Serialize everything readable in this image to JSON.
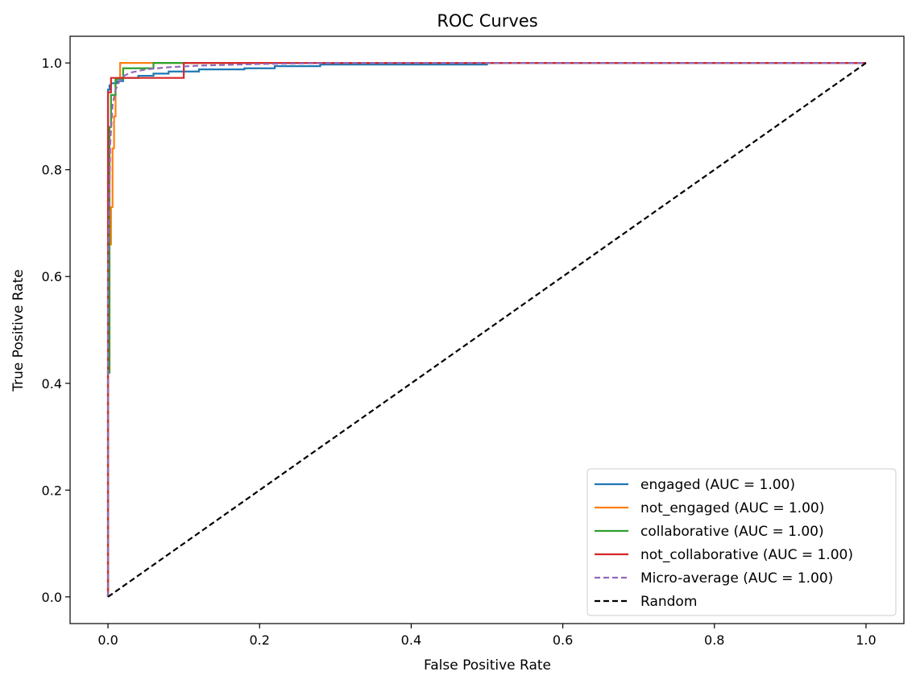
{
  "chart_data": {
    "type": "line",
    "title": "ROC Curves",
    "xlabel": "False Positive Rate",
    "ylabel": "True Positive Rate",
    "xlim": [
      -0.05,
      1.05
    ],
    "ylim": [
      -0.05,
      1.05
    ],
    "grid": false,
    "legend_position": "lower-right",
    "x_ticks": [
      {
        "value": 0.0,
        "label": "0.0"
      },
      {
        "value": 0.2,
        "label": "0.2"
      },
      {
        "value": 0.4,
        "label": "0.4"
      },
      {
        "value": 0.6,
        "label": "0.6"
      },
      {
        "value": 0.8,
        "label": "0.8"
      },
      {
        "value": 1.0,
        "label": "1.0"
      }
    ],
    "y_ticks": [
      {
        "value": 0.0,
        "label": "0.0"
      },
      {
        "value": 0.2,
        "label": "0.2"
      },
      {
        "value": 0.4,
        "label": "0.4"
      },
      {
        "value": 0.6,
        "label": "0.6"
      },
      {
        "value": 0.8,
        "label": "0.8"
      },
      {
        "value": 1.0,
        "label": "1.0"
      }
    ],
    "series": [
      {
        "name": "engaged (AUC = 1.00)",
        "color": "#1f77b4",
        "dash": "solid",
        "x": [
          0.0,
          0.0,
          0.002,
          0.002,
          0.004,
          0.004,
          0.012,
          0.012,
          0.02,
          0.02,
          0.04,
          0.04,
          0.06,
          0.06,
          0.08,
          0.08,
          0.12,
          0.12,
          0.18,
          0.18,
          0.22,
          0.22,
          0.28,
          0.28,
          0.5,
          0.5,
          1.0
        ],
        "y": [
          0.0,
          0.95,
          0.95,
          0.958,
          0.958,
          0.962,
          0.962,
          0.966,
          0.966,
          0.972,
          0.972,
          0.976,
          0.976,
          0.98,
          0.98,
          0.984,
          0.984,
          0.988,
          0.988,
          0.99,
          0.99,
          0.994,
          0.994,
          0.997,
          0.997,
          1.0,
          1.0
        ]
      },
      {
        "name": "not_engaged (AUC = 1.00)",
        "color": "#ff7f0e",
        "dash": "solid",
        "x": [
          0.0,
          0.0,
          0.002,
          0.002,
          0.004,
          0.004,
          0.006,
          0.006,
          0.008,
          0.008,
          0.01,
          0.01,
          0.016,
          0.016,
          1.0
        ],
        "y": [
          0.0,
          0.42,
          0.42,
          0.66,
          0.66,
          0.73,
          0.73,
          0.84,
          0.84,
          0.9,
          0.9,
          0.97,
          0.97,
          1.0,
          1.0
        ]
      },
      {
        "name": "collaborative (AUC = 1.00)",
        "color": "#2ca02c",
        "dash": "solid",
        "x": [
          0.0,
          0.0,
          0.002,
          0.002,
          0.004,
          0.004,
          0.01,
          0.01,
          0.02,
          0.02,
          0.06,
          0.06,
          1.0
        ],
        "y": [
          0.0,
          0.42,
          0.42,
          0.88,
          0.88,
          0.94,
          0.94,
          0.97,
          0.97,
          0.99,
          0.99,
          1.0,
          1.0
        ]
      },
      {
        "name": "not_collaborative (AUC = 1.00)",
        "color": "#d62728",
        "dash": "solid",
        "x": [
          0.0,
          0.0,
          0.004,
          0.004,
          0.1,
          0.1,
          1.0
        ],
        "y": [
          0.0,
          0.945,
          0.945,
          0.972,
          0.972,
          1.0,
          1.0
        ]
      },
      {
        "name": "Micro-average (AUC = 1.00)",
        "color": "#9467bd",
        "dash": "dashed",
        "x": [
          0.0,
          0.0,
          0.003,
          0.006,
          0.01,
          0.015,
          0.02,
          0.03,
          0.05,
          0.08,
          0.12,
          0.2,
          0.3,
          1.0
        ],
        "y": [
          0.0,
          0.6,
          0.85,
          0.92,
          0.95,
          0.965,
          0.975,
          0.982,
          0.988,
          0.992,
          0.995,
          0.998,
          1.0,
          1.0
        ]
      },
      {
        "name": "Random",
        "color": "#000000",
        "dash": "dashed",
        "x": [
          0.0,
          1.0
        ],
        "y": [
          0.0,
          1.0
        ]
      }
    ]
  }
}
